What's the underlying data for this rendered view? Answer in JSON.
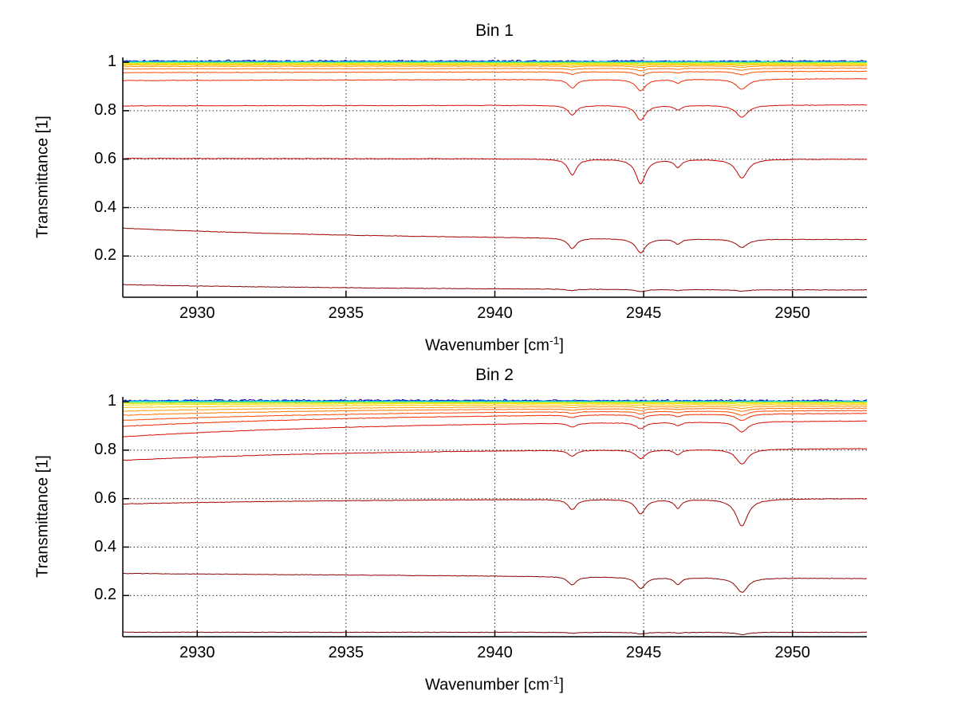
{
  "figure": {
    "background": "#ffffff",
    "grid_color": "#2a2a2a",
    "axis_color": "#000000"
  },
  "subplots": [
    {
      "title": "Bin 1",
      "ylabel": "Transmittance [1]",
      "xlabel_pre": "Wavenumber [cm",
      "xlabel_sup": "-1",
      "xlabel_post": "]"
    },
    {
      "title": "Bin 2",
      "ylabel": "Transmittance [1]",
      "xlabel_pre": "Wavenumber [cm",
      "xlabel_sup": "-1",
      "xlabel_post": "]"
    }
  ],
  "chart_data": [
    {
      "type": "line",
      "title": "Bin 1",
      "xlabel": "Wavenumber [cm^-1]",
      "ylabel": "Transmittance [1]",
      "xlim": [
        2927.5,
        2952.5
      ],
      "ylim": [
        0.03,
        1.02
      ],
      "xticks": [
        2930,
        2935,
        2940,
        2945,
        2950
      ],
      "xtick_labels": [
        "2930",
        "2935",
        "2940",
        "2945",
        "2950"
      ],
      "yticks": [
        1,
        0.8,
        0.6,
        0.4,
        0.2
      ],
      "ytick_labels": [
        "1",
        "0.8",
        "0.6",
        "0.4",
        "0.2"
      ],
      "grid": true,
      "legend": "none",
      "dip_centers": [
        2942.6,
        2944.9,
        2946.15,
        2948.3
      ],
      "dip_widths": [
        0.17,
        0.2,
        0.14,
        0.24
      ],
      "series": [
        {
          "color": "#00008F",
          "left": 1.005,
          "right": 1.004,
          "noise": 0.0045
        },
        {
          "color": "#0028FF",
          "left": 1.0035,
          "right": 1.003,
          "noise": 0.003
        },
        {
          "color": "#0090FF",
          "left": 1.0025,
          "right": 1.002,
          "noise": 0.0022
        },
        {
          "color": "#00D4E8",
          "left": 1.0015,
          "right": 1.001,
          "noise": 0.002
        },
        {
          "color": "#40E8A0",
          "left": 1.0,
          "right": 1.0,
          "noise": 0.002
        },
        {
          "color": "#90E840",
          "left": 0.998,
          "right": 0.998,
          "noise": 0.0018
        },
        {
          "color": "#D8E818",
          "left": 0.9955,
          "right": 0.996,
          "dips": [
            0.0008,
            0.0015,
            0.0005,
            0.0012
          ]
        },
        {
          "color": "#F8E000",
          "left": 0.9925,
          "right": 0.993,
          "dips": [
            0.0015,
            0.0025,
            0.001,
            0.002
          ]
        },
        {
          "color": "#FFC000",
          "left": 0.9885,
          "right": 0.9895,
          "dips": [
            0.0025,
            0.004,
            0.0015,
            0.0035
          ]
        },
        {
          "color": "#FF9800",
          "left": 0.983,
          "right": 0.9845,
          "dips": [
            0.004,
            0.0065,
            0.002,
            0.0055
          ]
        },
        {
          "color": "#FF7000",
          "left": 0.9725,
          "right": 0.9755,
          "dips": [
            0.006,
            0.01,
            0.003,
            0.008
          ]
        },
        {
          "color": "#FF4800",
          "left": 0.957,
          "right": 0.9625,
          "dips": [
            0.01,
            0.016,
            0.005,
            0.013
          ]
        },
        {
          "color": "#F02800",
          "left": 0.9245,
          "right": 0.932,
          "dips": [
            0.035,
            0.047,
            0.015,
            0.042
          ]
        },
        {
          "color": "#D81000",
          "left": 0.82,
          "right": 0.824,
          "dips": [
            0.04,
            0.062,
            0.019,
            0.05
          ]
        },
        {
          "color": "#C00000",
          "left": 0.603,
          "right": 0.6,
          "dips": [
            0.066,
            0.102,
            0.033,
            0.078
          ]
        },
        {
          "color": "#A00000",
          "left": 0.315,
          "right": 0.265,
          "tau": 9,
          "dips": [
            0.043,
            0.058,
            0.02,
            0.034
          ]
        },
        {
          "color": "#800000",
          "left": 0.082,
          "right": 0.058,
          "tau": 10,
          "dips": [
            0.006,
            0.009,
            0.004,
            0.006
          ]
        }
      ]
    },
    {
      "type": "line",
      "title": "Bin 2",
      "xlabel": "Wavenumber [cm^-1]",
      "ylabel": "Transmittance [1]",
      "xlim": [
        2927.5,
        2952.5
      ],
      "ylim": [
        0.03,
        1.02
      ],
      "xticks": [
        2930,
        2935,
        2940,
        2945,
        2950
      ],
      "xtick_labels": [
        "2930",
        "2935",
        "2940",
        "2945",
        "2950"
      ],
      "yticks": [
        1,
        0.8,
        0.6,
        0.4,
        0.2
      ],
      "ytick_labels": [
        "1",
        "0.8",
        "0.6",
        "0.4",
        "0.2"
      ],
      "grid": true,
      "legend": "none",
      "dip_centers": [
        2942.6,
        2944.9,
        2946.15,
        2948.3
      ],
      "dip_widths": [
        0.17,
        0.2,
        0.14,
        0.24
      ],
      "series": [
        {
          "color": "#00008F",
          "left": 1.005,
          "right": 1.004,
          "noise": 0.005
        },
        {
          "color": "#0028FF",
          "left": 1.0035,
          "right": 1.003,
          "noise": 0.0035
        },
        {
          "color": "#0090FF",
          "left": 1.0025,
          "right": 1.002,
          "noise": 0.0025
        },
        {
          "color": "#00D4E8",
          "left": 1.0015,
          "right": 1.001,
          "noise": 0.002
        },
        {
          "color": "#40E8A0",
          "left": 0.999,
          "right": 1.0,
          "noise": 0.002
        },
        {
          "color": "#90E840",
          "left": 0.996,
          "right": 0.998,
          "tau": 8,
          "noise": 0.0018
        },
        {
          "color": "#D8E818",
          "left": 0.9925,
          "right": 0.996,
          "tau": 8
        },
        {
          "color": "#F8E000",
          "left": 0.9865,
          "right": 0.9935,
          "tau": 8,
          "dips": [
            0.001,
            0.002,
            0.001,
            0.003
          ]
        },
        {
          "color": "#FFC000",
          "left": 0.976,
          "right": 0.9885,
          "tau": 8,
          "dips": [
            0.002,
            0.003,
            0.002,
            0.005
          ]
        },
        {
          "color": "#FF9800",
          "left": 0.961,
          "right": 0.982,
          "tau": 8,
          "dips": [
            0.003,
            0.005,
            0.003,
            0.008
          ]
        },
        {
          "color": "#FF7000",
          "left": 0.944,
          "right": 0.9745,
          "tau": 8,
          "dips": [
            0.005,
            0.007,
            0.004,
            0.012
          ]
        },
        {
          "color": "#FF4800",
          "left": 0.923,
          "right": 0.9655,
          "tau": 8.5,
          "dips": [
            0.007,
            0.011,
            0.006,
            0.018
          ]
        },
        {
          "color": "#F02800",
          "left": 0.898,
          "right": 0.955,
          "tau": 9,
          "dips": [
            0.01,
            0.016,
            0.009,
            0.027
          ]
        },
        {
          "color": "#D81000",
          "left": 0.855,
          "right": 0.9245,
          "tau": 9,
          "dips": [
            0.016,
            0.025,
            0.014,
            0.042
          ]
        },
        {
          "color": "#C00000",
          "left": 0.758,
          "right": 0.8095,
          "tau": 9,
          "dips": [
            0.024,
            0.036,
            0.021,
            0.062
          ]
        },
        {
          "color": "#A00000",
          "left": 0.578,
          "right": 0.6015,
          "tau": 9,
          "dips": [
            0.042,
            0.06,
            0.036,
            0.112
          ]
        },
        {
          "color": "#880000",
          "left": 0.291,
          "right": 0.27,
          "dips": [
            0.034,
            0.046,
            0.028,
            0.06
          ]
        },
        {
          "color": "#700000",
          "left": 0.0485,
          "right": 0.048,
          "dips": [
            0.004,
            0.007,
            0.003,
            0.009
          ]
        }
      ]
    }
  ]
}
